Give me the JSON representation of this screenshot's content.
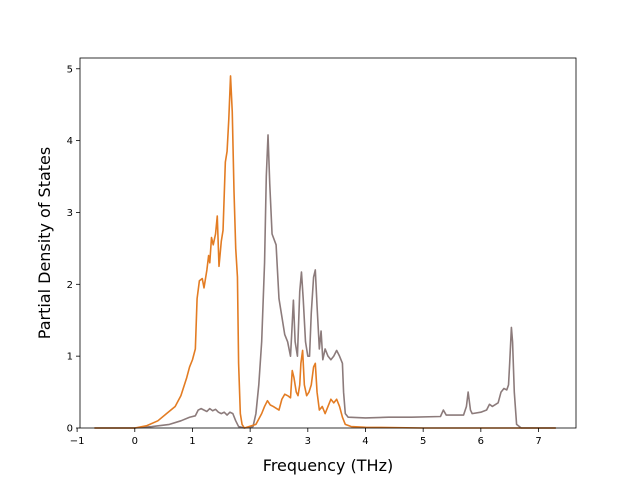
{
  "chart_data": {
    "type": "line",
    "title": "",
    "xlabel": "Frequency (THz)",
    "ylabel": "Partial Density of States",
    "xlim": [
      -0.95,
      7.65
    ],
    "ylim": [
      0,
      5.15
    ],
    "xticks": [
      -1,
      0,
      1,
      2,
      3,
      4,
      5,
      6,
      7
    ],
    "xtick_labels": [
      "−1",
      "0",
      "1",
      "2",
      "3",
      "4",
      "5",
      "6",
      "7"
    ],
    "yticks": [
      0,
      1,
      2,
      3,
      4,
      5
    ],
    "ytick_labels": [
      "0",
      "1",
      "2",
      "3",
      "4",
      "5"
    ],
    "grid": false,
    "legend": "none",
    "series": [
      {
        "color": "#8c7b7b",
        "points": [
          [
            -0.7,
            0
          ],
          [
            0,
            0
          ],
          [
            0.3,
            0.02
          ],
          [
            0.6,
            0.05
          ],
          [
            0.8,
            0.1
          ],
          [
            0.95,
            0.15
          ],
          [
            1.05,
            0.17
          ],
          [
            1.1,
            0.25
          ],
          [
            1.15,
            0.27
          ],
          [
            1.25,
            0.23
          ],
          [
            1.3,
            0.27
          ],
          [
            1.35,
            0.24
          ],
          [
            1.4,
            0.26
          ],
          [
            1.45,
            0.22
          ],
          [
            1.5,
            0.2
          ],
          [
            1.55,
            0.22
          ],
          [
            1.6,
            0.18
          ],
          [
            1.65,
            0.22
          ],
          [
            1.7,
            0.2
          ],
          [
            1.75,
            0.1
          ],
          [
            1.8,
            0.02
          ],
          [
            1.9,
            0
          ],
          [
            2.05,
            0.02
          ],
          [
            2.1,
            0.2
          ],
          [
            2.15,
            0.6
          ],
          [
            2.2,
            1.2
          ],
          [
            2.25,
            2.3
          ],
          [
            2.28,
            3.5
          ],
          [
            2.31,
            4.08
          ],
          [
            2.34,
            3.4
          ],
          [
            2.38,
            2.7
          ],
          [
            2.45,
            2.55
          ],
          [
            2.5,
            1.8
          ],
          [
            2.55,
            1.55
          ],
          [
            2.6,
            1.3
          ],
          [
            2.65,
            1.2
          ],
          [
            2.7,
            1.0
          ],
          [
            2.72,
            1.3
          ],
          [
            2.75,
            1.78
          ],
          [
            2.78,
            1.2
          ],
          [
            2.82,
            1.0
          ],
          [
            2.86,
            1.9
          ],
          [
            2.89,
            2.17
          ],
          [
            2.92,
            1.8
          ],
          [
            2.96,
            1.2
          ],
          [
            3.0,
            1.0
          ],
          [
            3.03,
            1.0
          ],
          [
            3.06,
            1.6
          ],
          [
            3.1,
            2.1
          ],
          [
            3.13,
            2.2
          ],
          [
            3.16,
            1.7
          ],
          [
            3.2,
            1.1
          ],
          [
            3.23,
            1.35
          ],
          [
            3.26,
            0.95
          ],
          [
            3.3,
            1.1
          ],
          [
            3.35,
            1.0
          ],
          [
            3.4,
            0.95
          ],
          [
            3.45,
            1.0
          ],
          [
            3.5,
            1.08
          ],
          [
            3.55,
            1.0
          ],
          [
            3.6,
            0.9
          ],
          [
            3.62,
            0.5
          ],
          [
            3.65,
            0.2
          ],
          [
            3.7,
            0.15
          ],
          [
            4.0,
            0.14
          ],
          [
            4.4,
            0.15
          ],
          [
            4.8,
            0.15
          ],
          [
            5.3,
            0.16
          ],
          [
            5.35,
            0.25
          ],
          [
            5.4,
            0.18
          ],
          [
            5.7,
            0.18
          ],
          [
            5.75,
            0.3
          ],
          [
            5.78,
            0.5
          ],
          [
            5.82,
            0.25
          ],
          [
            5.85,
            0.2
          ],
          [
            6.0,
            0.22
          ],
          [
            6.1,
            0.25
          ],
          [
            6.15,
            0.33
          ],
          [
            6.2,
            0.3
          ],
          [
            6.3,
            0.35
          ],
          [
            6.35,
            0.5
          ],
          [
            6.4,
            0.55
          ],
          [
            6.45,
            0.53
          ],
          [
            6.48,
            0.6
          ],
          [
            6.5,
            0.9
          ],
          [
            6.53,
            1.4
          ],
          [
            6.55,
            1.2
          ],
          [
            6.58,
            0.5
          ],
          [
            6.62,
            0.05
          ],
          [
            6.7,
            0
          ],
          [
            7.3,
            0
          ]
        ]
      },
      {
        "color": "#e37c23",
        "points": [
          [
            -0.7,
            0
          ],
          [
            0,
            0
          ],
          [
            0.2,
            0.03
          ],
          [
            0.4,
            0.1
          ],
          [
            0.55,
            0.2
          ],
          [
            0.7,
            0.3
          ],
          [
            0.8,
            0.45
          ],
          [
            0.9,
            0.7
          ],
          [
            0.95,
            0.85
          ],
          [
            1.0,
            0.95
          ],
          [
            1.05,
            1.1
          ],
          [
            1.08,
            1.8
          ],
          [
            1.12,
            2.05
          ],
          [
            1.17,
            2.08
          ],
          [
            1.2,
            1.95
          ],
          [
            1.25,
            2.2
          ],
          [
            1.28,
            2.4
          ],
          [
            1.3,
            2.3
          ],
          [
            1.33,
            2.65
          ],
          [
            1.36,
            2.55
          ],
          [
            1.4,
            2.7
          ],
          [
            1.43,
            2.95
          ],
          [
            1.46,
            2.25
          ],
          [
            1.5,
            2.6
          ],
          [
            1.53,
            2.75
          ],
          [
            1.57,
            3.7
          ],
          [
            1.6,
            3.85
          ],
          [
            1.63,
            4.3
          ],
          [
            1.66,
            4.9
          ],
          [
            1.69,
            4.4
          ],
          [
            1.72,
            3.3
          ],
          [
            1.75,
            2.5
          ],
          [
            1.78,
            2.1
          ],
          [
            1.8,
            0.9
          ],
          [
            1.83,
            0.2
          ],
          [
            1.86,
            0.05
          ],
          [
            1.9,
            0
          ],
          [
            2.1,
            0.05
          ],
          [
            2.2,
            0.2
          ],
          [
            2.25,
            0.3
          ],
          [
            2.3,
            0.38
          ],
          [
            2.35,
            0.32
          ],
          [
            2.4,
            0.3
          ],
          [
            2.5,
            0.25
          ],
          [
            2.55,
            0.4
          ],
          [
            2.6,
            0.47
          ],
          [
            2.65,
            0.45
          ],
          [
            2.7,
            0.42
          ],
          [
            2.73,
            0.8
          ],
          [
            2.76,
            0.7
          ],
          [
            2.8,
            0.5
          ],
          [
            2.83,
            0.45
          ],
          [
            2.86,
            0.6
          ],
          [
            2.88,
            0.9
          ],
          [
            2.91,
            1.08
          ],
          [
            2.94,
            0.6
          ],
          [
            2.98,
            0.45
          ],
          [
            3.02,
            0.5
          ],
          [
            3.06,
            0.6
          ],
          [
            3.1,
            0.85
          ],
          [
            3.13,
            0.9
          ],
          [
            3.16,
            0.5
          ],
          [
            3.2,
            0.25
          ],
          [
            3.25,
            0.3
          ],
          [
            3.3,
            0.2
          ],
          [
            3.35,
            0.3
          ],
          [
            3.4,
            0.4
          ],
          [
            3.45,
            0.35
          ],
          [
            3.5,
            0.4
          ],
          [
            3.55,
            0.3
          ],
          [
            3.6,
            0.15
          ],
          [
            3.65,
            0.05
          ],
          [
            3.75,
            0.02
          ],
          [
            4.0,
            0.01
          ],
          [
            5.0,
            0
          ],
          [
            7.3,
            0
          ]
        ]
      }
    ]
  }
}
